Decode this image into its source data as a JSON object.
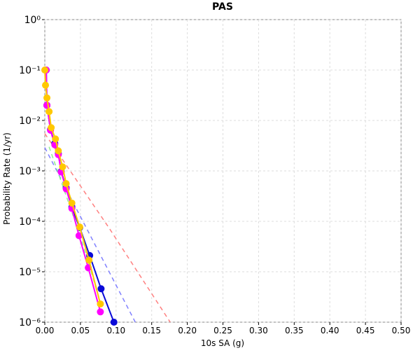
{
  "chart_data": {
    "type": "line",
    "title": "PAS",
    "x_label": "10s SA (g)",
    "y_label": "Probability Rate (1/yr)",
    "ylog": true,
    "grid": true,
    "xlim": [
      0,
      0.5
    ],
    "ylim": [
      1e-06,
      1
    ],
    "xticks": [
      {
        "value": 0,
        "label": "0.00"
      },
      {
        "value": 0.05,
        "label": "0.05"
      },
      {
        "value": 0.1,
        "label": "0.10"
      },
      {
        "value": 0.15,
        "label": "0.15"
      },
      {
        "value": 0.2,
        "label": "0.20"
      },
      {
        "value": 0.25,
        "label": "0.25"
      },
      {
        "value": 0.3,
        "label": "0.30"
      },
      {
        "value": 0.35,
        "label": "0.35"
      },
      {
        "value": 0.4,
        "label": "0.40"
      },
      {
        "value": 0.45,
        "label": "0.45"
      },
      {
        "value": 0.5,
        "label": "0.50"
      }
    ],
    "yticks": [
      {
        "value": 1e-06,
        "label": "10⁻⁶"
      },
      {
        "value": 1e-05,
        "label": "10⁻⁵"
      },
      {
        "value": 0.0001,
        "label": "10⁻⁴"
      },
      {
        "value": 0.001,
        "label": "10⁻³"
      },
      {
        "value": 0.01,
        "label": "10⁻²"
      },
      {
        "value": 0.1,
        "label": "10⁻¹"
      },
      {
        "value": 1,
        "label": "10⁰"
      }
    ],
    "series": [
      {
        "color": "#ff8080",
        "dash": true,
        "markers": false,
        "x": [
          0,
          0.09,
          0.176
        ],
        "values": [
          0.0055,
          7.45e-05,
          1e-06
        ]
      },
      {
        "color": "#8080ff",
        "dash": true,
        "markers": false,
        "x": [
          0,
          0.045,
          0.127
        ],
        "values": [
          0.0029,
          0.00017,
          1e-06
        ]
      },
      {
        "color": "#90ee90",
        "dash": true,
        "markers": false,
        "x": [
          0.006,
          0.05,
          0.08
        ],
        "values": [
          0.003,
          5e-05,
          2e-06
        ]
      },
      {
        "color": "#0a0ad8",
        "dash": false,
        "markers": true,
        "x": [
          0.002,
          0.003,
          0.008,
          0.014,
          0.019,
          0.023,
          0.03,
          0.038,
          0.049,
          0.063,
          0.079,
          0.097
        ],
        "values": [
          0.1,
          0.02,
          0.0066,
          0.0035,
          0.0022,
          0.00097,
          0.00046,
          0.00019,
          7.5e-05,
          2.1e-05,
          4.6e-06,
          1e-06
        ]
      },
      {
        "color": "#ff00ff",
        "dash": false,
        "markers": true,
        "x": [
          0.002,
          0.003,
          0.008,
          0.014,
          0.019,
          0.023,
          0.03,
          0.038,
          0.048,
          0.061,
          0.078
        ],
        "values": [
          0.1,
          0.02,
          0.0064,
          0.0033,
          0.0021,
          0.00095,
          0.00044,
          0.00018,
          5.2e-05,
          1.2e-05,
          1.6e-06
        ]
      },
      {
        "color": "#ffc800",
        "dash": false,
        "markers": true,
        "x": [
          0,
          0.001,
          0.003,
          0.006,
          0.009,
          0.015,
          0.019,
          0.025,
          0.03,
          0.038,
          0.049,
          0.062,
          0.078
        ],
        "values": [
          0.1,
          0.05,
          0.028,
          0.015,
          0.0072,
          0.0043,
          0.0025,
          0.0012,
          0.00056,
          0.00023,
          7.7e-05,
          1.7e-05,
          2.3e-06
        ]
      }
    ]
  }
}
